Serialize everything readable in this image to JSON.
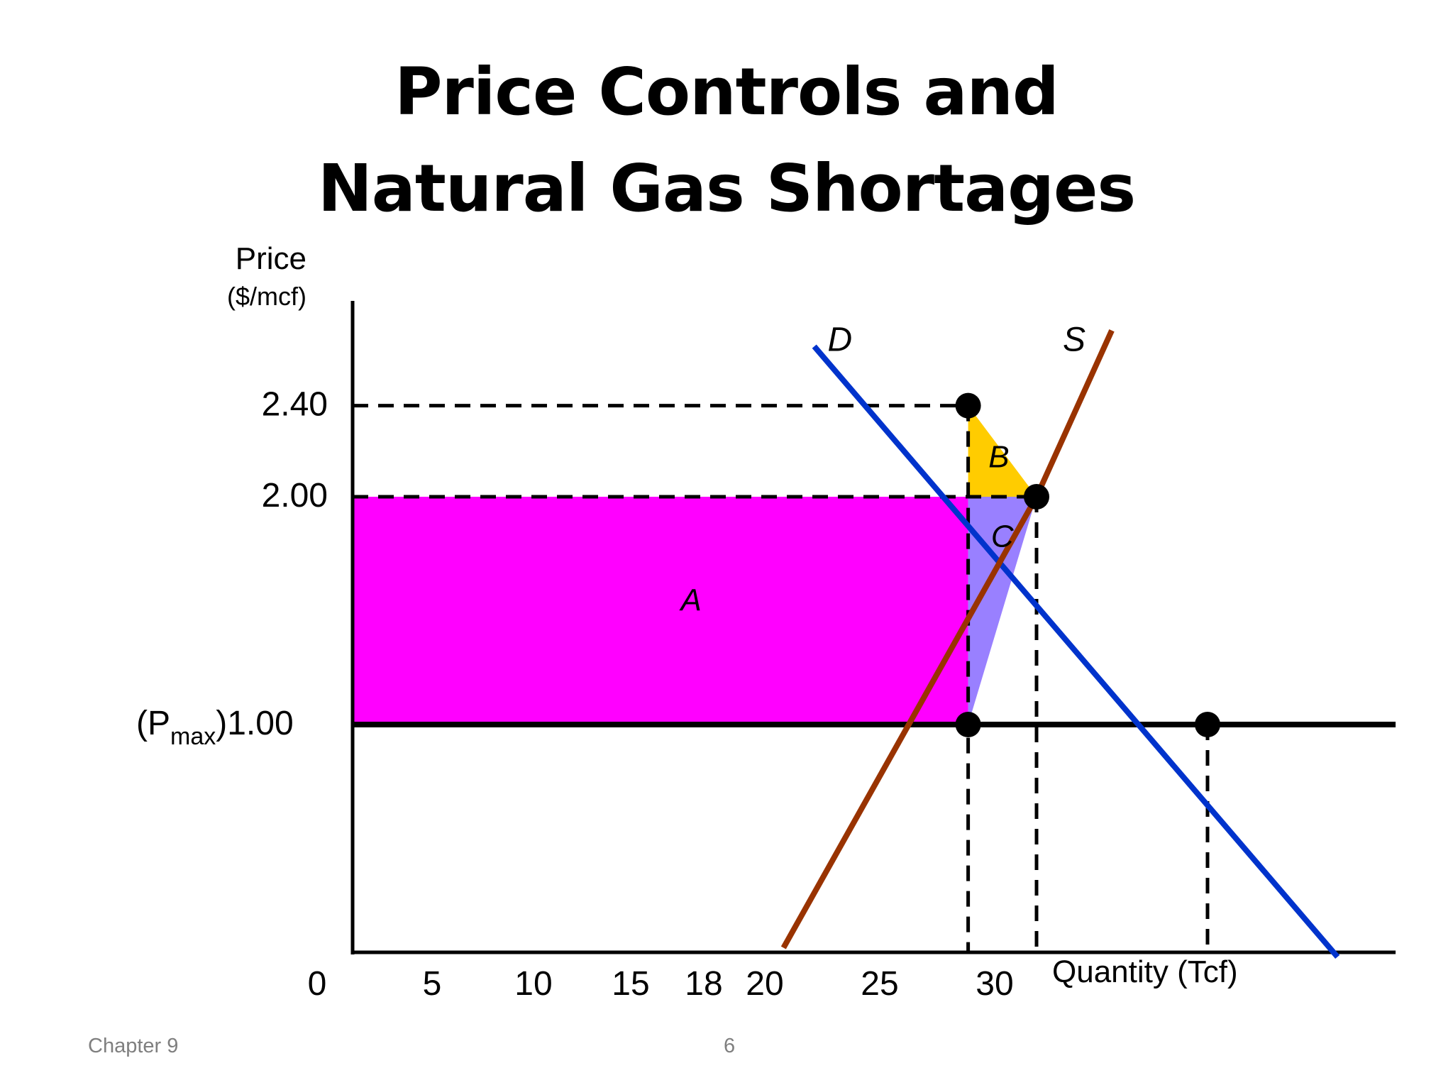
{
  "title_lines": [
    "Price Controls and",
    "Natural Gas Shortages"
  ],
  "footer": {
    "chapter": "Chapter 9",
    "page": "6"
  },
  "colors": {
    "demand": "#0033cc",
    "supply": "#993300",
    "area_A": "#ff00ff",
    "area_B": "#ffcc00",
    "area_C": "#9980ff",
    "axis": "#000000"
  },
  "chart_data": {
    "type": "line",
    "ylabel_lines": [
      "Price",
      "($/mcf)"
    ],
    "xlabel": "Quantity (Tcf)",
    "origin_label": "0",
    "x_ticks": [
      "5",
      "10",
      "15",
      "18",
      "20",
      "25",
      "30"
    ],
    "y_ticks": [
      {
        "value": 2.4,
        "label": "2.40"
      },
      {
        "value": 2.0,
        "label": "2.00"
      }
    ],
    "pmax_label": {
      "pre": "(P",
      "sub": "max",
      "post": ")1.00"
    },
    "pmax": 1.0,
    "xlim": [
      0,
      30
    ],
    "ylim": [
      0,
      2.6
    ],
    "series": [
      {
        "name": "D",
        "points": [
          [
            13.5,
            2.66
          ],
          [
            28.8,
            -0.02
          ]
        ]
      },
      {
        "name": "S",
        "points": [
          [
            12.6,
            0.02
          ],
          [
            20.0,
            2.0
          ],
          [
            22.2,
            2.73
          ]
        ]
      }
    ],
    "points": [
      {
        "x": 18,
        "y": 2.4
      },
      {
        "x": 20,
        "y": 2.0
      },
      {
        "x": 18,
        "y": 1.0
      },
      {
        "x": 25,
        "y": 1.0
      }
    ],
    "areas": [
      {
        "label": "A",
        "polygon": [
          [
            0,
            1.0
          ],
          [
            18,
            1.0
          ],
          [
            18,
            2.0
          ],
          [
            0,
            2.0
          ]
        ],
        "label_at": [
          9.9,
          1.5
        ]
      },
      {
        "label": "B",
        "polygon": [
          [
            18,
            2.4
          ],
          [
            18,
            2.0
          ],
          [
            20,
            2.0
          ]
        ],
        "label_at": [
          18.9,
          2.13
        ]
      },
      {
        "label": "C",
        "polygon": [
          [
            18,
            2.0
          ],
          [
            20,
            2.0
          ],
          [
            18,
            1.0
          ]
        ],
        "label_at": [
          19.0,
          1.78
        ]
      }
    ],
    "dashed_lines": [
      [
        [
          0,
          2.4
        ],
        [
          18,
          2.4
        ]
      ],
      [
        [
          0,
          2.0
        ],
        [
          20,
          2.0
        ]
      ],
      [
        [
          18,
          2.4
        ],
        [
          18,
          0
        ]
      ],
      [
        [
          20,
          2.0
        ],
        [
          20,
          0
        ]
      ],
      [
        [
          25,
          1.0
        ],
        [
          25,
          0
        ]
      ]
    ]
  }
}
